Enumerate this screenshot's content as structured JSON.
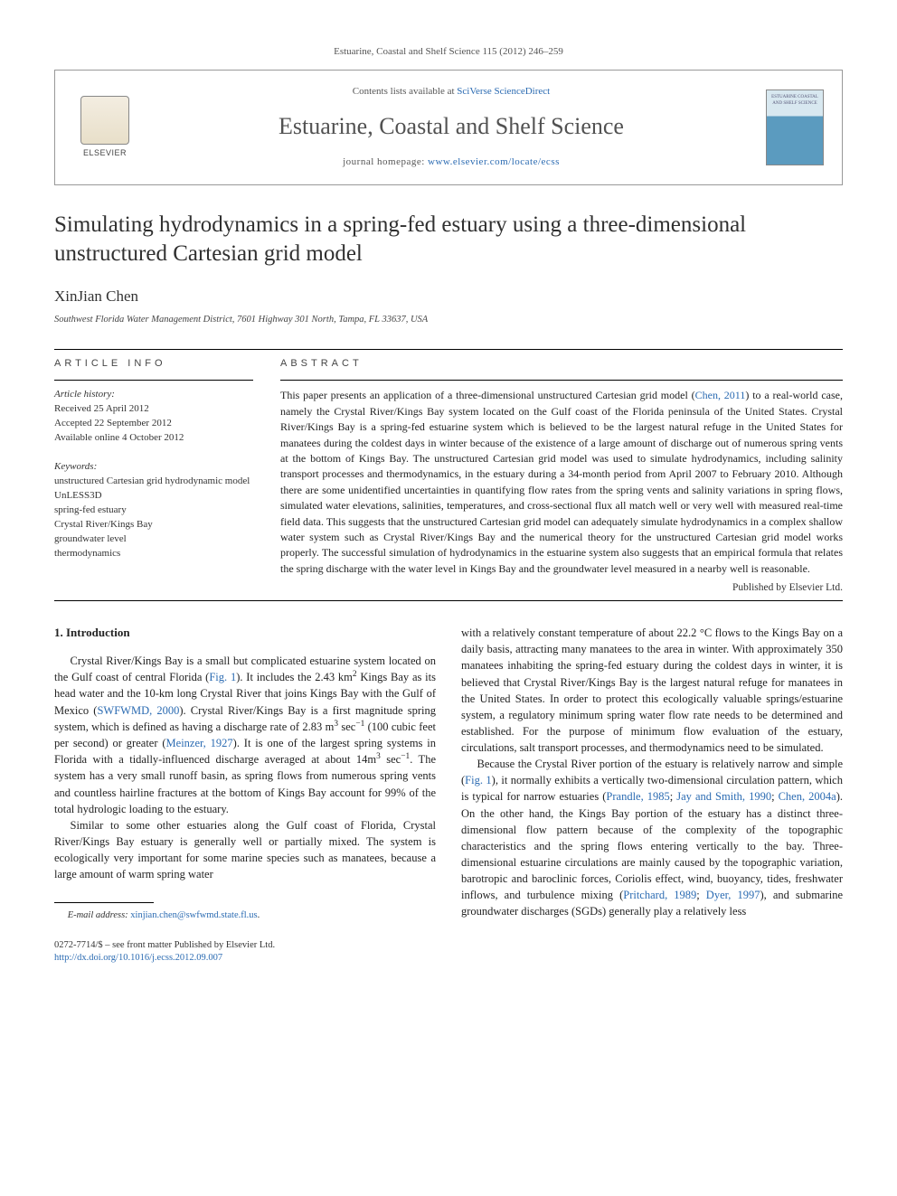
{
  "citation": "Estuarine, Coastal and Shelf Science 115 (2012) 246–259",
  "header": {
    "elsevier": "ELSEVIER",
    "contents_prefix": "Contents lists available at ",
    "contents_link": "SciVerse ScienceDirect",
    "journal_name": "Estuarine, Coastal and Shelf Science",
    "homepage_prefix": "journal homepage: ",
    "homepage_url": "www.elsevier.com/locate/ecss",
    "cover_text": "ESTUARINE COASTAL AND SHELF SCIENCE"
  },
  "title": "Simulating hydrodynamics in a spring-fed estuary using a three-dimensional unstructured Cartesian grid model",
  "author": "XinJian Chen",
  "affiliation": "Southwest Florida Water Management District, 7601 Highway 301 North, Tampa, FL 33637, USA",
  "article_info": {
    "heading": "ARTICLE INFO",
    "history_label": "Article history:",
    "history": {
      "received": "Received 25 April 2012",
      "accepted": "Accepted 22 September 2012",
      "online": "Available online 4 October 2012"
    },
    "keywords_label": "Keywords:",
    "keywords": [
      "unstructured Cartesian grid hydrodynamic model",
      "UnLESS3D",
      "spring-fed estuary",
      "Crystal River/Kings Bay",
      "groundwater level",
      "thermodynamics"
    ]
  },
  "abstract": {
    "heading": "ABSTRACT",
    "text_pre": "This paper presents an application of a three-dimensional unstructured Cartesian grid model (",
    "link1": "Chen, 2011",
    "text_post": ") to a real-world case, namely the Crystal River/Kings Bay system located on the Gulf coast of the Florida peninsula of the United States. Crystal River/Kings Bay is a spring-fed estuarine system which is believed to be the largest natural refuge in the United States for manatees during the coldest days in winter because of the existence of a large amount of discharge out of numerous spring vents at the bottom of Kings Bay. The unstructured Cartesian grid model was used to simulate hydrodynamics, including salinity transport processes and thermodynamics, in the estuary during a 34-month period from April 2007 to February 2010. Although there are some unidentified uncertainties in quantifying flow rates from the spring vents and salinity variations in spring flows, simulated water elevations, salinities, temperatures, and cross-sectional flux all match well or very well with measured real-time field data. This suggests that the unstructured Cartesian grid model can adequately simulate hydrodynamics in a complex shallow water system such as Crystal River/Kings Bay and the numerical theory for the unstructured Cartesian grid model works properly. The successful simulation of hydrodynamics in the estuarine system also suggests that an empirical formula that relates the spring discharge with the water level in Kings Bay and the groundwater level measured in a nearby well is reasonable.",
    "publisher": "Published by Elsevier Ltd."
  },
  "intro": {
    "heading": "1. Introduction",
    "p1_a": "Crystal River/Kings Bay is a small but complicated estuarine system located on the Gulf coast of central Florida (",
    "p1_fig": "Fig. 1",
    "p1_b": "). It includes the 2.43 km",
    "p1_c": " Kings Bay as its head water and the 10-km long Crystal River that joins Kings Bay with the Gulf of Mexico (",
    "p1_ref1": "SWFWMD, 2000",
    "p1_d": "). Crystal River/Kings Bay is a first magnitude spring system, which is defined as having a discharge rate of 2.83 m",
    "p1_e": " sec",
    "p1_f": " (100 cubic feet per second) or greater (",
    "p1_ref2": "Meinzer, 1927",
    "p1_g": "). It is one of the largest spring systems in Florida with a tidally-influenced discharge averaged at about 14m",
    "p1_h": " sec",
    "p1_i": ". The system has a very small runoff basin, as spring flows from numerous spring vents and countless hairline fractures at the bottom of Kings Bay account for 99% of the total hydrologic loading to the estuary.",
    "p2": "Similar to some other estuaries along the Gulf coast of Florida, Crystal River/Kings Bay estuary is generally well or partially mixed. The system is ecologically very important for some marine species such as manatees, because a large amount of warm spring water",
    "col2_p1": "with a relatively constant temperature of about 22.2 °C flows to the Kings Bay on a daily basis, attracting many manatees to the area in winter. With approximately 350 manatees inhabiting the spring-fed estuary during the coldest days in winter, it is believed that Crystal River/Kings Bay is the largest natural refuge for manatees in the United States. In order to protect this ecologically valuable springs/estuarine system, a regulatory minimum spring water flow rate needs to be determined and established. For the purpose of minimum flow evaluation of the estuary, circulations, salt transport processes, and thermodynamics need to be simulated.",
    "col2_p2_a": "Because the Crystal River portion of the estuary is relatively narrow and simple (",
    "col2_p2_fig": "Fig. 1",
    "col2_p2_b": "), it normally exhibits a vertically two-dimensional circulation pattern, which is typical for narrow estuaries (",
    "col2_ref1": "Prandle, 1985",
    "col2_p2_c": "; ",
    "col2_ref2": "Jay and Smith, 1990",
    "col2_p2_d": "; ",
    "col2_ref3": "Chen, 2004a",
    "col2_p2_e": "). On the other hand, the Kings Bay portion of the estuary has a distinct three-dimensional flow pattern because of the complexity of the topographic characteristics and the spring flows entering vertically to the bay. Three-dimensional estuarine circulations are mainly caused by the topographic variation, barotropic and baroclinic forces, Coriolis effect, wind, buoyancy, tides, freshwater inflows, and turbulence mixing (",
    "col2_ref4": "Pritchard, 1989",
    "col2_p2_f": "; ",
    "col2_ref5": "Dyer, 1997",
    "col2_p2_g": "), and submarine groundwater discharges (SGDs) generally play a relatively less"
  },
  "footnote": {
    "email_label": "E-mail address:",
    "email": "xinjian.chen@swfwmd.state.fl.us"
  },
  "footer": {
    "line1": "0272-7714/$ – see front matter Published by Elsevier Ltd.",
    "doi": "http://dx.doi.org/10.1016/j.ecss.2012.09.007"
  },
  "colors": {
    "link": "#2b6bb2",
    "heading_gray": "#525252",
    "text": "#222"
  }
}
